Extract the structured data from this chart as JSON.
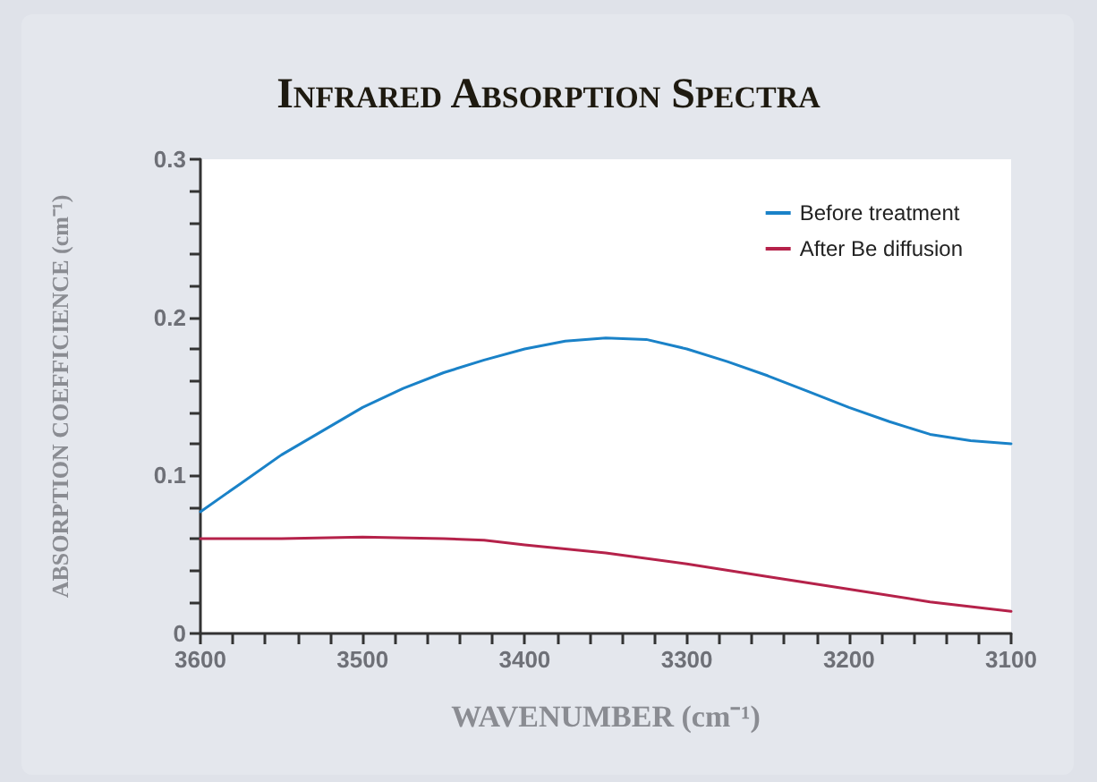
{
  "chart_data": {
    "type": "line",
    "title": "Infrared Absorption Spectra",
    "xlabel": "WAVENUMBER (cm⁻¹)",
    "ylabel": "ABSORPTION COEFFICIENCE (cm⁻¹)",
    "xlim": [
      3600,
      3100
    ],
    "ylim": [
      0,
      0.3
    ],
    "xticks": [
      3600,
      {
        "value": 3580,
        "label": null
      },
      {
        "value": 3560,
        "label": null
      },
      {
        "value": 3540,
        "label": null
      },
      {
        "value": 3520,
        "label": null
      },
      3500,
      {
        "value": 3480,
        "label": null
      },
      {
        "value": 3460,
        "label": null
      },
      {
        "value": 3440,
        "label": null
      },
      {
        "value": 3420,
        "label": null
      },
      3400,
      {
        "value": 3380,
        "label": null
      },
      {
        "value": 3360,
        "label": null
      },
      {
        "value": 3340,
        "label": null
      },
      {
        "value": 3320,
        "label": null
      },
      3300,
      {
        "value": 3280,
        "label": null
      },
      {
        "value": 3260,
        "label": null
      },
      {
        "value": 3240,
        "label": null
      },
      {
        "value": 3220,
        "label": null
      },
      3200,
      {
        "value": 3180,
        "label": null
      },
      {
        "value": 3160,
        "label": null
      },
      {
        "value": 3140,
        "label": null
      },
      {
        "value": 3120,
        "label": null
      },
      3100
    ],
    "yticks": [
      0,
      {
        "value": 0.02,
        "label": null
      },
      {
        "value": 0.04,
        "label": null
      },
      {
        "value": 0.06,
        "label": null
      },
      {
        "value": 0.08,
        "label": null
      },
      0.1,
      {
        "value": 0.12,
        "label": null
      },
      {
        "value": 0.14,
        "label": null
      },
      {
        "value": 0.16,
        "label": null
      },
      {
        "value": 0.18,
        "label": null
      },
      0.2,
      {
        "value": 0.22,
        "label": null
      },
      {
        "value": 0.24,
        "label": null
      },
      {
        "value": 0.26,
        "label": null
      },
      {
        "value": 0.28,
        "label": null
      },
      0.3
    ],
    "grid": false,
    "legend": "top right",
    "marker": "none",
    "line_style": "solid",
    "series": [
      {
        "name": "Before treatment",
        "color": "#1a82c8",
        "x": [
          3600,
          3575,
          3550,
          3525,
          3500,
          3475,
          3450,
          3425,
          3400,
          3375,
          3350,
          3325,
          3300,
          3275,
          3250,
          3225,
          3200,
          3175,
          3150,
          3125,
          3100
        ],
        "values": [
          0.077,
          0.095,
          0.113,
          0.128,
          0.143,
          0.155,
          0.165,
          0.173,
          0.18,
          0.185,
          0.187,
          0.186,
          0.18,
          0.172,
          0.163,
          0.153,
          0.143,
          0.134,
          0.126,
          0.122,
          0.12
        ]
      },
      {
        "name": "After Be diffusion",
        "color": "#b5224a",
        "x": [
          3600,
          3550,
          3500,
          3450,
          3425,
          3400,
          3350,
          3300,
          3250,
          3200,
          3150,
          3125,
          3100
        ],
        "values": [
          0.06,
          0.06,
          0.061,
          0.06,
          0.059,
          0.056,
          0.051,
          0.044,
          0.036,
          0.028,
          0.02,
          0.017,
          0.014
        ]
      }
    ]
  }
}
